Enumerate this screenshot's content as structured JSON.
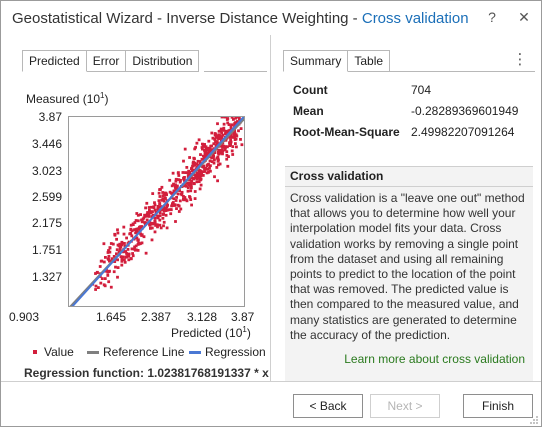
{
  "window": {
    "title_main": "Geostatistical Wizard - Inverse Distance Weighting - ",
    "title_accent": "Cross validation",
    "help_label": "?",
    "close_label": "✕"
  },
  "left_tabs": [
    "Predicted",
    "Error",
    "Distribution"
  ],
  "right_tabs": [
    "Summary",
    "Table"
  ],
  "chart_data": {
    "type": "scatter",
    "ylabel_base": "Measured (10",
    "ylabel_exp": "1",
    "ylabel_end": ")",
    "xlabel_base": "Predicted (10",
    "xlabel_exp": "1",
    "xlabel_end": ")",
    "yticks": [
      "3.87",
      "3.446",
      "3.023",
      "2.599",
      "2.175",
      "1.751",
      "1.327",
      "0.903"
    ],
    "xticks": [
      "1.645",
      "2.387",
      "3.128",
      "3.87"
    ],
    "xlim": [
      0.903,
      3.87
    ],
    "ylim": [
      0.903,
      3.87
    ],
    "reference_line": [
      [
        0.903,
        0.903
      ],
      [
        3.87,
        3.87
      ]
    ],
    "regression_line": [
      [
        0.903,
        0.87
      ],
      [
        3.87,
        3.91
      ]
    ],
    "point_count": 704,
    "point_color": "#d21e3c",
    "reference_color": "#7f7f7f",
    "regression_color": "#4a78d4",
    "legend": [
      "Value",
      "Reference Line",
      "Regression"
    ]
  },
  "regression_function": "Regression function: 1.02381768191337 * x",
  "summary": {
    "rows": [
      {
        "label": "Count",
        "value": "704"
      },
      {
        "label": "Mean",
        "value": "-0.28289369601949"
      },
      {
        "label": "Root-Mean-Square",
        "value": "2.49982207091264"
      }
    ]
  },
  "info": {
    "title": "Cross validation",
    "body": "Cross validation is a \"leave one out\" method that allows you to determine how well your interpolation model fits your data. Cross validation works by removing a single point from the dataset and using all remaining points to predict to the location of the point that was removed. The predicted value is then compared to the measured value, and many statistics are generated to determine the accuracy of the prediction.",
    "link": "Learn more about cross validation"
  },
  "buttons": {
    "back": "< Back",
    "next": "Next >",
    "finish": "Finish"
  },
  "colors": {
    "accent": "#1b6fb8",
    "link": "#2a7a1e"
  }
}
